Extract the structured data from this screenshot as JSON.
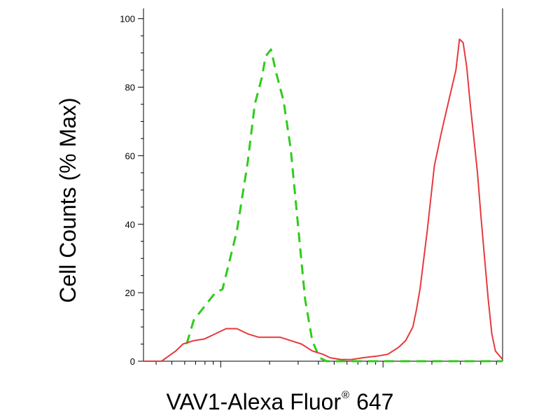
{
  "chart_data": {
    "type": "line",
    "title": "",
    "xlabel_parts": {
      "main": "VAV1-Alexa Fluor",
      "sup": "®",
      "tail": " 647"
    },
    "ylabel": "Cell Counts (% Max)",
    "yticks": [
      "0",
      "20",
      "40",
      "60",
      "80",
      "100"
    ],
    "ylim": [
      0,
      103
    ],
    "xscale": "log",
    "xlim": [
      0,
      1
    ],
    "grid": false,
    "legend": "none",
    "series": [
      {
        "color": "#2ecc1a",
        "style": "dashed",
        "points": [
          [
            0.12,
            5
          ],
          [
            0.14,
            12
          ],
          [
            0.17,
            16
          ],
          [
            0.2,
            20
          ],
          [
            0.22,
            21
          ],
          [
            0.26,
            38
          ],
          [
            0.29,
            58
          ],
          [
            0.31,
            75
          ],
          [
            0.33,
            83
          ],
          [
            0.34,
            89
          ],
          [
            0.355,
            91
          ],
          [
            0.37,
            84
          ],
          [
            0.39,
            76
          ],
          [
            0.41,
            62
          ],
          [
            0.43,
            40
          ],
          [
            0.45,
            18
          ],
          [
            0.47,
            6
          ],
          [
            0.49,
            1
          ],
          [
            0.51,
            0
          ],
          [
            0.58,
            0
          ],
          [
            0.7,
            0
          ],
          [
            0.85,
            0
          ],
          [
            1.0,
            0
          ]
        ]
      },
      {
        "color": "#e8393d",
        "style": "solid",
        "points": [
          [
            0.0,
            0
          ],
          [
            0.05,
            0
          ],
          [
            0.09,
            3
          ],
          [
            0.11,
            5
          ],
          [
            0.14,
            6
          ],
          [
            0.17,
            6.5
          ],
          [
            0.2,
            8
          ],
          [
            0.23,
            9.5
          ],
          [
            0.26,
            9.5
          ],
          [
            0.29,
            8
          ],
          [
            0.32,
            7
          ],
          [
            0.35,
            7
          ],
          [
            0.38,
            7
          ],
          [
            0.41,
            6
          ],
          [
            0.44,
            5
          ],
          [
            0.47,
            3
          ],
          [
            0.5,
            2
          ],
          [
            0.52,
            1
          ],
          [
            0.55,
            0.5
          ],
          [
            0.58,
            0.5
          ],
          [
            0.61,
            1
          ],
          [
            0.65,
            1.5
          ],
          [
            0.68,
            2
          ],
          [
            0.71,
            4
          ],
          [
            0.73,
            6
          ],
          [
            0.75,
            10
          ],
          [
            0.76,
            15
          ],
          [
            0.77,
            21
          ],
          [
            0.79,
            38
          ],
          [
            0.81,
            57
          ],
          [
            0.83,
            67
          ],
          [
            0.85,
            76
          ],
          [
            0.87,
            85
          ],
          [
            0.88,
            94
          ],
          [
            0.89,
            93
          ],
          [
            0.9,
            86
          ],
          [
            0.91,
            75
          ],
          [
            0.92,
            65
          ],
          [
            0.93,
            55
          ],
          [
            0.94,
            42
          ],
          [
            0.95,
            30
          ],
          [
            0.96,
            18
          ],
          [
            0.97,
            8
          ],
          [
            0.98,
            3
          ],
          [
            1.0,
            0.5
          ]
        ]
      }
    ]
  }
}
